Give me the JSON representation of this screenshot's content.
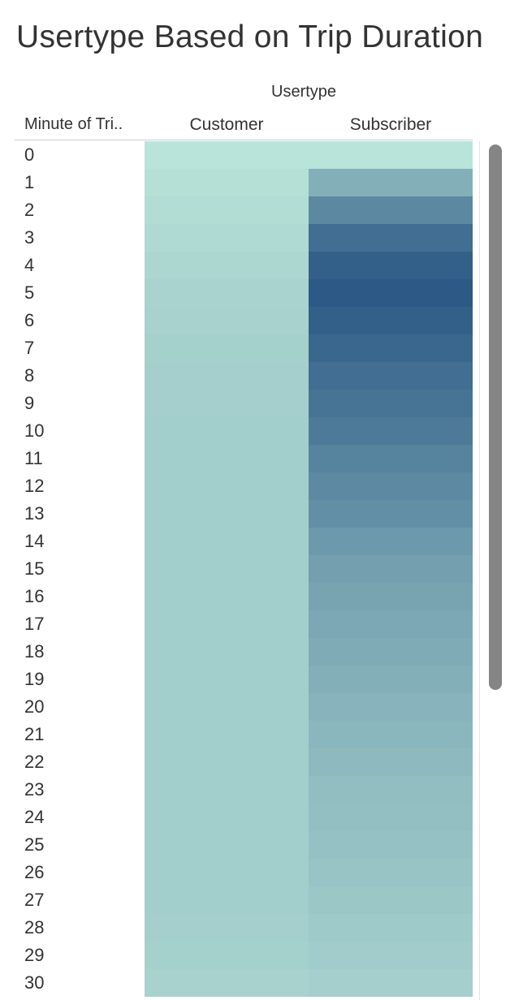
{
  "title": "Usertype Based on Trip Duration",
  "chart_data": {
    "type": "heatmap",
    "title": "Usertype Based on Trip Duration",
    "column_group_label": "Usertype",
    "row_header": "Minute of Tri..",
    "columns": [
      "Customer",
      "Subscriber"
    ],
    "rows": [
      "0",
      "1",
      "2",
      "3",
      "4",
      "5",
      "6",
      "7",
      "8",
      "9",
      "10",
      "11",
      "12",
      "13",
      "14",
      "15",
      "16",
      "17",
      "18",
      "19",
      "20",
      "21",
      "22",
      "23",
      "24",
      "25",
      "26",
      "27",
      "28",
      "29",
      "30"
    ],
    "color_scale": {
      "low": "#b9e4d9",
      "high": "#2c5985"
    },
    "values": {
      "Customer": [
        0.0,
        0.03,
        0.05,
        0.07,
        0.09,
        0.12,
        0.13,
        0.14,
        0.15,
        0.15,
        0.16,
        0.16,
        0.16,
        0.16,
        0.16,
        0.16,
        0.16,
        0.16,
        0.16,
        0.16,
        0.16,
        0.16,
        0.16,
        0.16,
        0.16,
        0.16,
        0.16,
        0.16,
        0.15,
        0.14,
        0.13
      ],
      "Subscriber": [
        0.0,
        0.38,
        0.66,
        0.85,
        0.95,
        1.0,
        0.95,
        0.9,
        0.85,
        0.81,
        0.76,
        0.7,
        0.65,
        0.61,
        0.54,
        0.5,
        0.46,
        0.43,
        0.41,
        0.38,
        0.35,
        0.33,
        0.31,
        0.28,
        0.27,
        0.25,
        0.23,
        0.21,
        0.19,
        0.17,
        0.15
      ]
    }
  }
}
